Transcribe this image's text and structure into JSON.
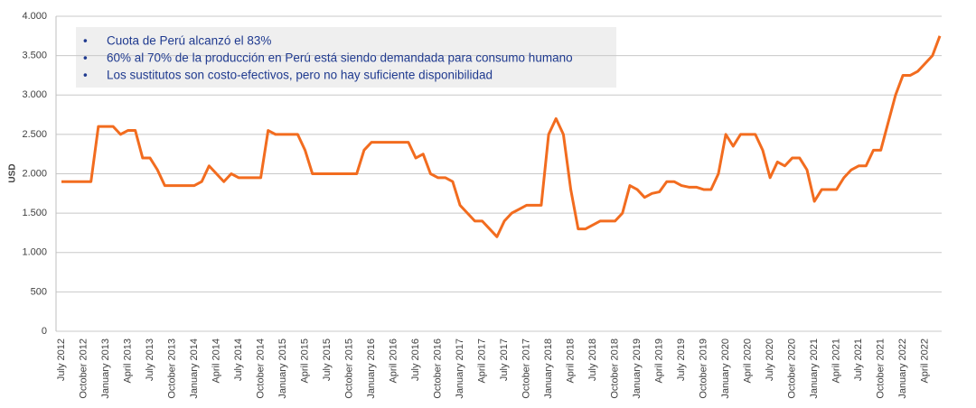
{
  "chart_data": {
    "type": "line",
    "y_label": "USD",
    "annotations": [
      "Cuota de Perú alcanzó el 83%",
      "60% al 70% de la producción en Perú está siendo demandada para consumo humano",
      "Los sustitutos son costo-efectivos, pero no hay suficiente disponibilidad"
    ],
    "categories": [
      "July 2012",
      null,
      null,
      "October 2012",
      null,
      null,
      "January 2013",
      null,
      null,
      "April 2013",
      null,
      null,
      "July 2013",
      null,
      null,
      "October 2013",
      null,
      null,
      "January 2014",
      null,
      null,
      "April 2014",
      null,
      null,
      "July 2014",
      null,
      null,
      "October 2014",
      null,
      null,
      "January 2015",
      null,
      null,
      "April 2015",
      null,
      null,
      "July 2015",
      null,
      null,
      "October 2015",
      null,
      null,
      "January 2016",
      null,
      null,
      "April 2016",
      null,
      null,
      "July 2016",
      null,
      null,
      "October 2016",
      null,
      null,
      "January 2017",
      null,
      null,
      "April 2017",
      null,
      null,
      "July 2017",
      null,
      null,
      "October 2017",
      null,
      null,
      "January 2018",
      null,
      null,
      "April 2018",
      null,
      null,
      "July 2018",
      null,
      null,
      "October 2018",
      null,
      null,
      "January 2019",
      null,
      null,
      "April 2019",
      null,
      null,
      "July 2019",
      null,
      null,
      "October 2019",
      null,
      null,
      "January 2020",
      null,
      null,
      "April 2020",
      null,
      null,
      "July 2020",
      null,
      null,
      "October 2020",
      null,
      null,
      "January 2021",
      null,
      null,
      "April 2021",
      null,
      null,
      "July 2021",
      null,
      null,
      "October 2021",
      null,
      null,
      "January 2022",
      null,
      null,
      "April 2022",
      null,
      null
    ],
    "series": [
      {
        "color": "#f26c1f",
        "values": [
          1900,
          1900,
          1900,
          1900,
          1900,
          2600,
          2600,
          2600,
          2500,
          2550,
          2550,
          2200,
          2200,
          2050,
          1850,
          1850,
          1850,
          1850,
          1850,
          1900,
          2100,
          2000,
          1900,
          2000,
          1950,
          1950,
          1950,
          1950,
          2550,
          2500,
          2500,
          2500,
          2500,
          2300,
          2000,
          2000,
          2000,
          2000,
          2000,
          2000,
          2000,
          2300,
          2400,
          2400,
          2400,
          2400,
          2400,
          2400,
          2200,
          2250,
          2000,
          1950,
          1950,
          1900,
          1600,
          1500,
          1400,
          1400,
          1300,
          1200,
          1400,
          1500,
          1550,
          1600,
          1600,
          1600,
          2500,
          2700,
          2500,
          1800,
          1300,
          1300,
          1350,
          1400,
          1400,
          1400,
          1500,
          1850,
          1800,
          1700,
          1750,
          1770,
          1900,
          1900,
          1850,
          1830,
          1830,
          1800,
          1800,
          2000,
          2500,
          2350,
          2500,
          2500,
          2500,
          2300,
          1950,
          2150,
          2100,
          2200,
          2200,
          2050,
          1650,
          1800,
          1800,
          1800,
          1950,
          2050,
          2100,
          2100,
          2300,
          2300,
          2650,
          3000,
          3250,
          3250,
          3300,
          3400,
          3500,
          3750
        ]
      }
    ],
    "ylim": [
      0,
      4000
    ],
    "yticks": [
      0,
      500,
      {
        "value": 1000,
        "label": "1.000"
      },
      {
        "value": 1500,
        "label": "1.500"
      },
      {
        "value": 2000,
        "label": "2.000"
      },
      {
        "value": 2500,
        "label": "2.500"
      },
      {
        "value": 3000,
        "label": "3.000"
      },
      {
        "value": 3500,
        "label": "3.500"
      },
      {
        "value": 4000,
        "label": "4.000"
      }
    ],
    "grid": true
  }
}
